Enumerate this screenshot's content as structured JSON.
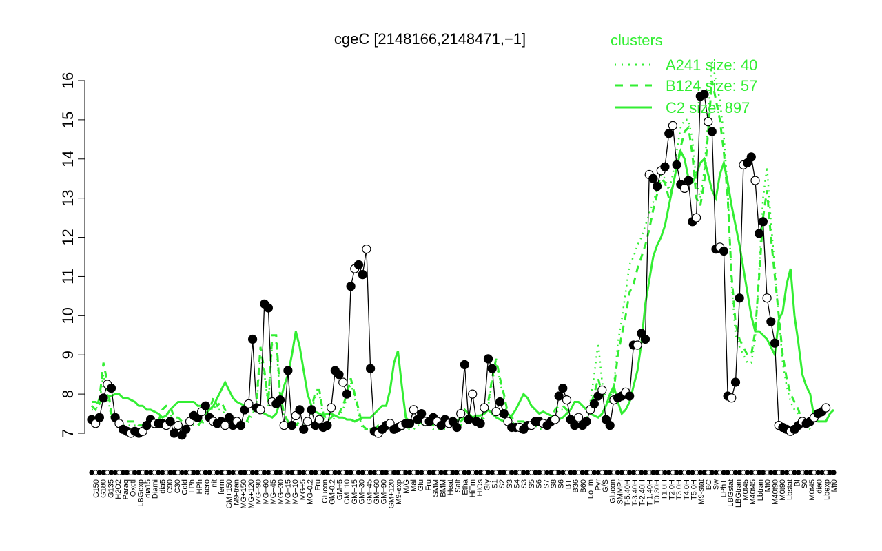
{
  "chart_data": {
    "type": "line",
    "title": "cgeC [2148166,2148471,−1]",
    "xlabel": "",
    "ylabel": "",
    "ylim": [
      7,
      16
    ],
    "yticks": [
      7,
      8,
      9,
      10,
      11,
      12,
      13,
      14,
      15,
      16
    ],
    "grid": false,
    "legend": {
      "title": "clusters",
      "position": "top-right",
      "color": "#33ee33",
      "entries": [
        {
          "label": "A241 size: 40",
          "style": "dotted"
        },
        {
          "label": "B124 size: 57",
          "style": "dashed"
        },
        {
          "label": "C2 size: 897",
          "style": "solid"
        }
      ]
    },
    "colors": {
      "clusters": "#33ee33",
      "gene": "#000000",
      "marker_open": "#ffffff"
    },
    "xtick_labels": [
      "G150",
      "G180",
      "G135",
      "H2O2",
      "Paraq",
      "Oxctl",
      "LBGexp",
      "dia15",
      "Diami",
      "dia5",
      "C90",
      "C30",
      "Cold",
      "LPh",
      "HPh",
      "aero",
      "nit",
      "ferm",
      "GM+150",
      "M9-tran",
      "MG+150",
      "MG+120",
      "MG+90",
      "MG+60",
      "MG+45",
      "MG+30",
      "MG+15",
      "MG+10",
      "MG+5",
      "MG-0.2",
      "Fru",
      "Glucon",
      "GM-0.2",
      "GM+5",
      "GM+10",
      "GM+15",
      "GM+30",
      "GM+45",
      "GM+60",
      "GM+90",
      "GM+120",
      "M9-exp",
      "M/G",
      "Mal",
      "Glu",
      "Fru",
      "SMM",
      "BMM",
      "Heat",
      "Salt",
      "Etha",
      "HiTm",
      "HiOs",
      "Gly",
      "S1",
      "S2",
      "S3",
      "S4",
      "S3",
      "S5",
      "S6",
      "S7",
      "S8",
      "S6",
      "BT",
      "B36",
      "B60",
      "LoTm",
      "Pyr",
      "G/S",
      "Glucon",
      "SMMPr",
      "T-5.40H",
      "T-3.40H",
      "T-2.40H",
      "T-1.40H",
      "T0.30H",
      "T1.0H",
      "T2.0H",
      "T3.0H",
      "T4.0H",
      "T5.0H",
      "M9-stat",
      "BC",
      "Sw",
      "LPhT",
      "LBGstat",
      "LBGtran",
      "M0t45",
      "M40t45",
      "Lbtran",
      "Mt0",
      "M40t90",
      "M0t90",
      "Lbstat",
      "BI",
      "S0",
      "M0t45",
      "dia0",
      "Lbexp",
      "Mt0"
    ],
    "x_count": 190,
    "series": [
      {
        "name": "C2 size: 897",
        "style": "solid",
        "color": "#33ee33",
        "y": [
          7.8,
          7.8,
          7.75,
          7.9,
          7.95,
          7.95,
          8.0,
          8.0,
          7.9,
          7.9,
          7.85,
          7.8,
          7.7,
          7.7,
          7.6,
          7.6,
          7.55,
          7.5,
          7.4,
          7.45,
          7.6,
          7.7,
          7.8,
          7.8,
          7.8,
          7.8,
          7.8,
          7.7,
          7.7,
          7.6,
          7.6,
          7.7,
          7.9,
          8.1,
          8.3,
          8.1,
          7.9,
          7.8,
          7.75,
          7.7,
          7.75,
          7.7,
          7.6,
          7.55,
          7.5,
          7.45,
          7.4,
          7.5,
          7.8,
          8.2,
          8.5,
          9.0,
          9.6,
          9.2,
          8.6,
          8.0,
          7.7,
          7.55,
          7.5,
          7.45,
          7.5,
          7.5,
          7.45,
          7.4,
          7.4,
          7.35,
          7.35,
          7.3,
          7.35,
          7.4,
          7.4,
          7.4,
          7.5,
          7.6,
          7.7,
          7.7,
          8.1,
          8.8,
          9.1,
          8.2,
          7.4,
          7.3,
          7.3,
          7.3,
          7.25,
          7.2,
          7.25,
          7.3,
          7.35,
          7.35,
          7.3,
          7.3,
          7.3,
          7.3,
          7.4,
          7.6,
          7.5,
          7.4,
          7.45,
          7.45,
          7.5,
          7.6,
          7.5,
          7.4,
          7.35,
          7.3,
          7.35,
          7.45,
          7.6,
          7.8,
          8.0,
          7.9,
          7.7,
          7.6,
          7.5,
          7.55,
          7.5,
          7.45,
          7.4,
          7.35,
          7.4,
          7.5,
          7.6,
          7.8,
          7.8,
          7.7,
          7.6,
          7.5,
          7.45,
          7.4,
          7.5,
          7.7,
          8.0,
          8.2,
          7.8,
          7.5,
          7.6,
          7.8,
          8.2,
          8.6,
          9.3,
          10.3,
          10.9,
          11.5,
          11.8,
          12.0,
          12.3,
          12.8,
          13.3,
          13.8,
          14.2,
          14.0,
          13.5,
          13.4,
          13.6,
          13.9,
          14.0,
          13.6,
          13.2,
          13.0,
          13.6,
          13.9,
          13.4,
          12.8,
          12.3,
          11.8,
          11.2,
          10.6,
          10.0,
          9.6,
          9.6,
          9.5,
          9.4,
          9.2,
          9.0,
          9.9,
          10.1,
          10.8,
          11.2,
          10.0,
          9.3,
          8.5,
          8.2,
          8.0,
          7.4,
          7.3,
          7.3,
          7.3,
          7.5,
          7.6
        ]
      },
      {
        "name": "B124 size: 57",
        "style": "dashed",
        "color": "#33ee33",
        "y": [
          7.7,
          7.6,
          7.9,
          8.8,
          8.3,
          7.5,
          7.4,
          7.3,
          7.3,
          7.3,
          7.3,
          7.3,
          7.2,
          7.2,
          7.2,
          7.3,
          7.4,
          7.3,
          7.6,
          7.7,
          7.7,
          7.4,
          7.4,
          7.3,
          7.3,
          7.3,
          7.3,
          7.2,
          7.3,
          7.5,
          7.6,
          7.9,
          7.7,
          7.8,
          7.6,
          7.4,
          7.3,
          7.3,
          7.2,
          7.2,
          7.4,
          7.6,
          7.8,
          9.2,
          8.6,
          7.8,
          9.5,
          9.5,
          8.0,
          7.5,
          7.3,
          7.2,
          7.2,
          7.3,
          7.3,
          7.3,
          7.6,
          8.1,
          8.1,
          7.5,
          7.3,
          7.4,
          7.5,
          7.5,
          7.7,
          8.0,
          8.4,
          8.0,
          7.6,
          7.2,
          7.1,
          7.1,
          7.1,
          7.2,
          7.2,
          7.2,
          7.2,
          7.1,
          7.1,
          7.1,
          7.1,
          7.2,
          7.2,
          7.3,
          7.3,
          7.3,
          7.3,
          7.2,
          7.2,
          7.2,
          7.2,
          7.3,
          7.4,
          7.3,
          7.3,
          7.4,
          7.5,
          7.4,
          7.3,
          7.3,
          7.5,
          7.8,
          8.4,
          8.9,
          8.4,
          8.0,
          7.5,
          7.4,
          7.3,
          7.3,
          7.3,
          7.2,
          7.3,
          7.3,
          7.2,
          7.2,
          7.3,
          7.3,
          7.6,
          7.7,
          7.7,
          7.6,
          7.4,
          7.3,
          7.3,
          7.3,
          7.4,
          7.7,
          8.0,
          8.4,
          8.0,
          7.8,
          7.8,
          8.1,
          9.0,
          9.5,
          10.0,
          10.6,
          10.8,
          11.2,
          11.5,
          11.8,
          12.2,
          12.7,
          13.1,
          13.5,
          13.4,
          13.0,
          13.3,
          13.8,
          14.3,
          14.7,
          14.8,
          14.1,
          13.0,
          12.8,
          13.4,
          14.7,
          16.0,
          15.5,
          15.0,
          14.2,
          13.0,
          11.0,
          9.8,
          9.4,
          9.2,
          9.0,
          9.0,
          9.6,
          11.0,
          12.5,
          13.2,
          12.0,
          11.0,
          10.0,
          9.0,
          8.4,
          8.0,
          7.8,
          7.6,
          7.3,
          7.3,
          7.2
        ]
      },
      {
        "name": "A241 size: 40",
        "style": "dotted",
        "color": "#33ee33",
        "y": [
          7.6,
          7.6,
          7.8,
          8.5,
          8.0,
          7.4,
          7.3,
          7.2,
          7.2,
          7.2,
          7.2,
          7.2,
          7.2,
          7.2,
          7.2,
          7.2,
          7.2,
          7.2,
          7.4,
          7.5,
          7.5,
          7.3,
          7.3,
          7.2,
          7.2,
          7.2,
          7.2,
          7.2,
          7.2,
          7.4,
          7.5,
          7.7,
          7.6,
          7.6,
          7.5,
          7.3,
          7.2,
          7.2,
          7.2,
          7.2,
          7.3,
          7.5,
          7.7,
          9.0,
          8.5,
          7.7,
          9.3,
          9.3,
          7.9,
          7.4,
          7.2,
          7.2,
          7.2,
          7.2,
          7.2,
          7.2,
          7.5,
          8.0,
          8.0,
          7.4,
          7.2,
          7.3,
          7.4,
          7.4,
          7.6,
          7.9,
          8.3,
          7.9,
          7.5,
          7.1,
          7.1,
          7.1,
          7.1,
          7.1,
          7.1,
          7.1,
          7.1,
          7.1,
          7.1,
          7.1,
          7.1,
          7.1,
          7.1,
          7.2,
          7.2,
          7.2,
          7.2,
          7.1,
          7.1,
          7.1,
          7.1,
          7.2,
          7.3,
          7.2,
          7.2,
          7.3,
          7.4,
          7.3,
          7.2,
          7.2,
          7.4,
          7.7,
          8.3,
          8.8,
          8.3,
          7.9,
          7.4,
          7.3,
          7.2,
          7.2,
          7.2,
          7.1,
          7.2,
          7.2,
          7.1,
          7.1,
          7.2,
          7.2,
          7.5,
          7.6,
          7.6,
          7.5,
          7.3,
          7.2,
          7.2,
          7.2,
          7.3,
          7.8,
          8.5,
          9.3,
          8.3,
          7.9,
          7.9,
          8.2,
          9.3,
          9.9,
          10.6,
          11.3,
          11.5,
          11.8,
          12.0,
          12.3,
          12.6,
          12.9,
          13.2,
          13.6,
          13.5,
          13.2,
          13.6,
          14.2,
          14.8,
          15.0,
          15.0,
          14.5,
          13.4,
          13.0,
          13.7,
          15.0,
          16.5,
          16.0,
          15.5,
          14.6,
          13.2,
          10.8,
          9.5,
          9.2,
          9.0,
          8.8,
          8.8,
          9.4,
          11.2,
          13.0,
          13.8,
          12.4,
          11.2,
          10.0,
          8.8,
          8.2,
          7.8,
          7.6,
          7.5,
          7.2,
          7.2,
          7.1
        ]
      },
      {
        "name": "cgeC",
        "style": "solid-points",
        "color": "#000000",
        "y": [
          7.35,
          7.25,
          7.4,
          7.9,
          8.25,
          8.15,
          7.4,
          7.25,
          7.1,
          7.05,
          7.0,
          7.05,
          7.0,
          7.05,
          7.2,
          7.35,
          7.25,
          7.25,
          7.25,
          7.2,
          7.3,
          7.0,
          7.2,
          6.95,
          7.1,
          7.3,
          7.45,
          7.4,
          7.55,
          7.7,
          7.4,
          7.3,
          7.25,
          7.3,
          7.2,
          7.4,
          7.2,
          7.3,
          7.2,
          7.6,
          7.75,
          9.4,
          7.65,
          7.6,
          10.3,
          10.2,
          7.8,
          7.75,
          7.85,
          7.2,
          8.6,
          7.2,
          7.45,
          7.6,
          7.1,
          7.3,
          7.6,
          7.2,
          7.35,
          7.15,
          7.2,
          7.65,
          8.6,
          8.5,
          8.3,
          8.0,
          10.75,
          11.2,
          11.3,
          11.05,
          11.7,
          8.65,
          7.05,
          7.0,
          7.1,
          7.2,
          7.25,
          7.1,
          7.15,
          7.2,
          7.25,
          7.25,
          7.6,
          7.35,
          7.5,
          7.3,
          7.3,
          7.4,
          7.3,
          7.2,
          7.35,
          7.25,
          7.3,
          7.15,
          7.5,
          8.75,
          7.35,
          8.0,
          7.3,
          7.25,
          7.65,
          8.9,
          8.65,
          7.55,
          7.8,
          7.5,
          7.3,
          7.15,
          7.15,
          7.15,
          7.1,
          7.2,
          7.2,
          7.3,
          7.3,
          7.25,
          7.2,
          7.3,
          7.35,
          7.95,
          8.15,
          7.85,
          7.35,
          7.2,
          7.4,
          7.2,
          7.3,
          7.6,
          7.75,
          7.95,
          8.1,
          7.35,
          7.2,
          7.85,
          7.9,
          7.95,
          8.05,
          7.95,
          9.25,
          9.25,
          9.55,
          9.4,
          13.6,
          13.5,
          13.3,
          13.7,
          13.8,
          14.65,
          14.85,
          13.85,
          13.35,
          13.25,
          13.45,
          12.4,
          12.5,
          15.6,
          15.65,
          14.95,
          14.7,
          11.7,
          11.75,
          11.65,
          7.95,
          7.9,
          8.3,
          10.45,
          13.85,
          13.9,
          14.05,
          13.45,
          12.1,
          12.4,
          10.45,
          9.85,
          9.3,
          7.2,
          7.15,
          7.1,
          7.05,
          7.1,
          7.2,
          7.3,
          7.25,
          7.3,
          7.4,
          7.5,
          7.55,
          7.65
        ]
      }
    ]
  }
}
